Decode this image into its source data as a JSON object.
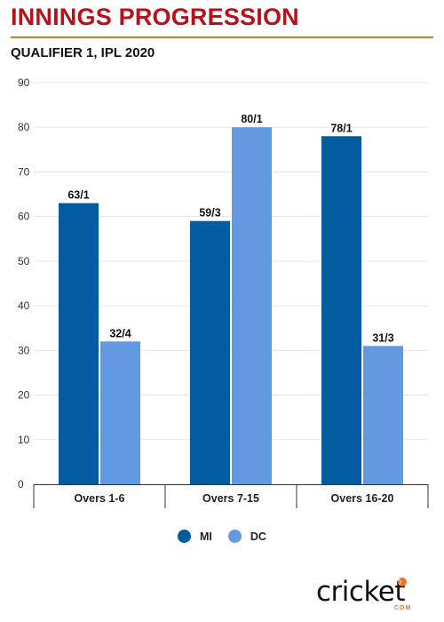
{
  "header": {
    "title": "INNINGS PROGRESSION",
    "subtitle": "QUALIFIER 1, IPL 2020"
  },
  "colors": {
    "title": "#b5121b",
    "rule": "#e8742a",
    "mi": "#035ba0",
    "dc": "#6399e0",
    "grid": "#e6e6e6"
  },
  "chart_data": {
    "type": "bar",
    "categories": [
      "Overs 1-6",
      "Overs 7-15",
      "Overs 16-20"
    ],
    "series": [
      {
        "name": "MI",
        "values": [
          63,
          59,
          78
        ],
        "labels": [
          "63/1",
          "59/3",
          "78/1"
        ]
      },
      {
        "name": "DC",
        "values": [
          32,
          80,
          31
        ],
        "labels": [
          "32/4",
          "80/1",
          "31/3"
        ]
      }
    ],
    "yticks": [
      0,
      10,
      20,
      30,
      40,
      50,
      60,
      70,
      80,
      90
    ],
    "ylim": [
      0,
      90
    ],
    "grid": true,
    "legend_position": "bottom-center"
  },
  "logo": {
    "text": "cricket",
    "suffix": "COM",
    "icon": "cricket-ball-icon"
  }
}
